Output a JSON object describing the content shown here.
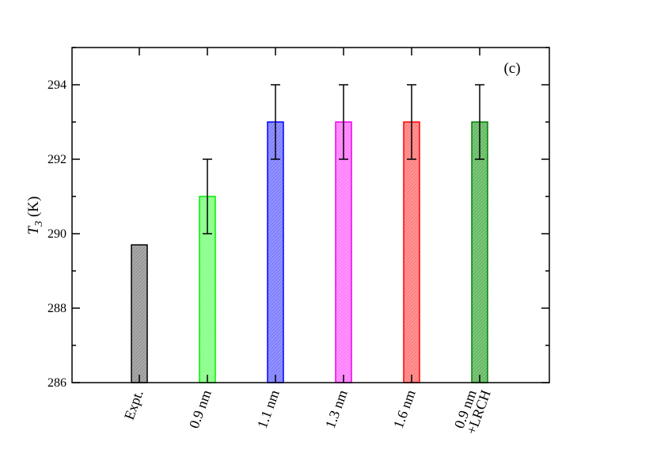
{
  "chart_data": {
    "type": "bar",
    "panel_label": "(c)",
    "ylabel": {
      "symbol": "T",
      "subscript": "3",
      "unit": " (K)"
    },
    "ylim": [
      286,
      295
    ],
    "yticks": [
      286,
      288,
      290,
      292,
      294
    ],
    "ytick_labels": [
      "286",
      "288",
      "290",
      "292",
      "294"
    ],
    "grid": false,
    "categories": [
      {
        "lines": [
          "Expt."
        ]
      },
      {
        "lines": [
          "0.9 nm"
        ]
      },
      {
        "lines": [
          "1.1 nm"
        ]
      },
      {
        "lines": [
          "1.3 nm"
        ]
      },
      {
        "lines": [
          "1.6 nm"
        ]
      },
      {
        "lines": [
          "0.9 nm",
          "+LRCH"
        ]
      }
    ],
    "values": [
      289.7,
      291.0,
      293.0,
      293.0,
      293.0,
      293.0
    ],
    "errors": [
      null,
      1.0,
      1.0,
      1.0,
      1.0,
      1.0
    ],
    "colors": [
      "#000000",
      "#00ee00",
      "#0000ff",
      "#ee00ee",
      "#ff0000",
      "#008000"
    ],
    "fills": [
      "#999999",
      "#88ff88",
      "#8080ff",
      "#ff80ff",
      "#ff8080",
      "#66bb66"
    ]
  }
}
